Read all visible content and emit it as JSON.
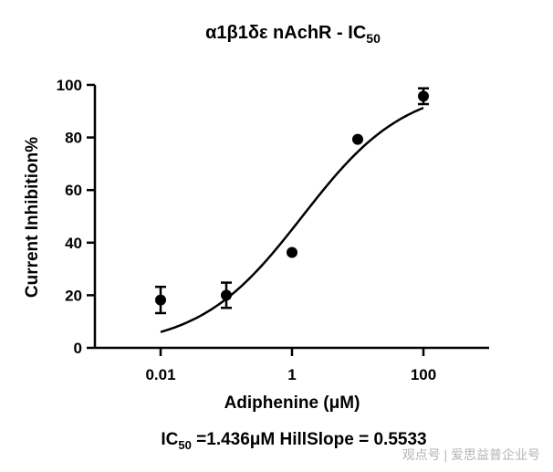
{
  "chart_data": {
    "type": "scatter",
    "title": {
      "main": "α1β1δε nAchR - IC",
      "subscript": "50"
    },
    "xlabel": "Adiphenine (μM)",
    "ylabel": "Current Inhibition%",
    "x_scale": "log",
    "xlim": [
      0.001,
      1000
    ],
    "ylim": [
      0,
      100
    ],
    "x_ticks": [
      0.01,
      1,
      100
    ],
    "x_tick_labels": [
      "0.01",
      "1",
      "100"
    ],
    "y_ticks": [
      0,
      20,
      40,
      60,
      80,
      100
    ],
    "y_tick_labels": [
      "0",
      "20",
      "40",
      "60",
      "80",
      "100"
    ],
    "grid": false,
    "legend": "none",
    "points": [
      {
        "x": 0.01,
        "y": 18.2,
        "err": 5.0
      },
      {
        "x": 0.1,
        "y": 20.0,
        "err": 4.8
      },
      {
        "x": 1,
        "y": 36.3,
        "err": 0
      },
      {
        "x": 10,
        "y": 79.3,
        "err": 0
      },
      {
        "x": 100,
        "y": 95.7,
        "err": 3.0
      }
    ],
    "fit": {
      "model": "four-parameter logistic",
      "bottom": 0,
      "top": 100,
      "ic50": 1.436,
      "hill_slope": 0.5533,
      "x_range": [
        0.01,
        100
      ]
    },
    "annotation": {
      "prefix": "IC",
      "subscript": "50",
      "text": " =1.436μM  HillSlope = 0.5533"
    },
    "color": "#000000"
  },
  "watermark": "观点号 | 爱思益普企业号"
}
